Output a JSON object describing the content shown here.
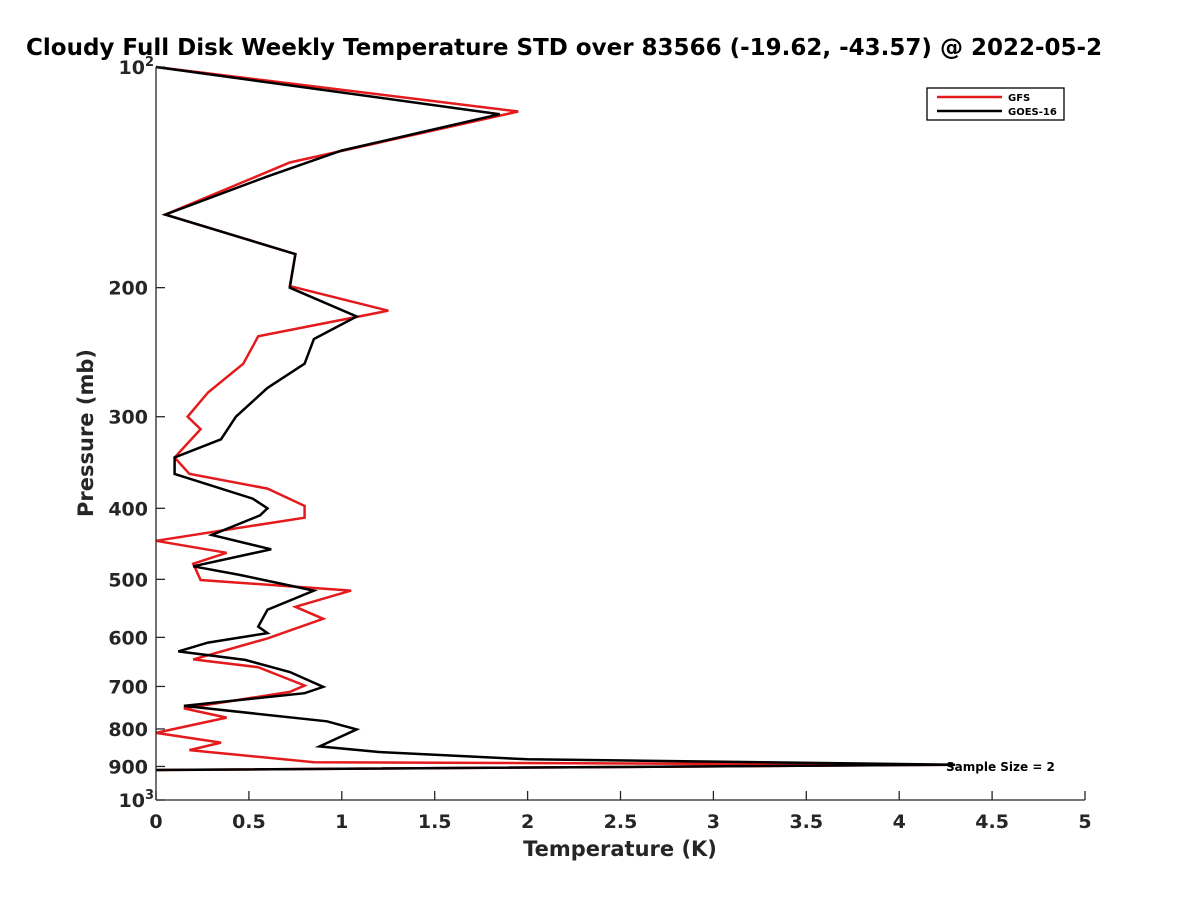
{
  "chart_data": {
    "type": "line",
    "title": "Cloudy Full Disk Weekly Temperature STD over 83566 (-19.62, -43.57) @ 2022-05-2",
    "xlabel": "Temperature (K)",
    "ylabel": "Pressure (mb)",
    "xlim": [
      0,
      5
    ],
    "ylim": [
      100,
      1000
    ],
    "y_scale": "log",
    "y_reversed": true,
    "grid": false,
    "legend_position": "top-right",
    "x_ticks": [
      "0",
      "0.5",
      "1",
      "1.5",
      "2",
      "2.5",
      "3",
      "3.5",
      "4",
      "4.5",
      "5"
    ],
    "x_tick_values": [
      0,
      0.5,
      1,
      1.5,
      2,
      2.5,
      3,
      3.5,
      4,
      4.5,
      5
    ],
    "y_ticks": [
      {
        "value": 100,
        "base": "10",
        "exp": "2"
      },
      {
        "value": 200,
        "label": "200"
      },
      {
        "value": 300,
        "label": "300"
      },
      {
        "value": 400,
        "label": "400"
      },
      {
        "value": 500,
        "label": "500"
      },
      {
        "value": 600,
        "label": "600"
      },
      {
        "value": 700,
        "label": "700"
      },
      {
        "value": 800,
        "label": "800"
      },
      {
        "value": 900,
        "label": "900"
      },
      {
        "value": 1000,
        "base": "10",
        "exp": "3"
      }
    ],
    "annotation": "Sample Size = 2",
    "series": [
      {
        "name": "GFS",
        "color": "#e41a1c",
        "points": [
          [
            0.0,
            100
          ],
          [
            1.95,
            115
          ],
          [
            0.72,
            135
          ],
          [
            0.05,
            159
          ],
          [
            0.75,
            180
          ],
          [
            0.72,
            199
          ],
          [
            1.25,
            215
          ],
          [
            0.55,
            233
          ],
          [
            0.47,
            254
          ],
          [
            0.28,
            278
          ],
          [
            0.17,
            300
          ],
          [
            0.24,
            312
          ],
          [
            0.1,
            341
          ],
          [
            0.18,
            359
          ],
          [
            0.6,
            376
          ],
          [
            0.8,
            397
          ],
          [
            0.8,
            412
          ],
          [
            0.0,
            443
          ],
          [
            0.38,
            460
          ],
          [
            0.2,
            476
          ],
          [
            0.24,
            501
          ],
          [
            1.05,
            518
          ],
          [
            0.75,
            545
          ],
          [
            0.9,
            566
          ],
          [
            0.6,
            602
          ],
          [
            0.2,
            643
          ],
          [
            0.55,
            659
          ],
          [
            0.8,
            698
          ],
          [
            0.72,
            712
          ],
          [
            0.15,
            750
          ],
          [
            0.38,
            772
          ],
          [
            0.0,
            810
          ],
          [
            0.35,
            835
          ],
          [
            0.18,
            855
          ],
          [
            0.85,
            888
          ],
          [
            4.3,
            895
          ],
          [
            0.0,
            910
          ]
        ]
      },
      {
        "name": "GOES-16",
        "color": "#000000",
        "points": [
          [
            0.0,
            100
          ],
          [
            1.85,
            116
          ],
          [
            1.0,
            130
          ],
          [
            0.6,
            141
          ],
          [
            0.05,
            159
          ],
          [
            0.75,
            180
          ],
          [
            0.72,
            200
          ],
          [
            1.08,
            219
          ],
          [
            0.85,
            235
          ],
          [
            0.8,
            254
          ],
          [
            0.6,
            274
          ],
          [
            0.43,
            300
          ],
          [
            0.35,
            322
          ],
          [
            0.1,
            341
          ],
          [
            0.1,
            359
          ],
          [
            0.52,
            388
          ],
          [
            0.6,
            400
          ],
          [
            0.56,
            409
          ],
          [
            0.3,
            435
          ],
          [
            0.62,
            455
          ],
          [
            0.2,
            480
          ],
          [
            0.45,
            493
          ],
          [
            0.85,
            518
          ],
          [
            0.6,
            550
          ],
          [
            0.55,
            580
          ],
          [
            0.6,
            592
          ],
          [
            0.28,
            610
          ],
          [
            0.12,
            627
          ],
          [
            0.48,
            644
          ],
          [
            0.72,
            669
          ],
          [
            0.9,
            701
          ],
          [
            0.8,
            715
          ],
          [
            0.15,
            744
          ],
          [
            0.92,
            781
          ],
          [
            1.08,
            801
          ],
          [
            0.88,
            845
          ],
          [
            1.2,
            860
          ],
          [
            2.0,
            880
          ],
          [
            4.3,
            895
          ],
          [
            0.0,
            910
          ]
        ]
      }
    ]
  }
}
